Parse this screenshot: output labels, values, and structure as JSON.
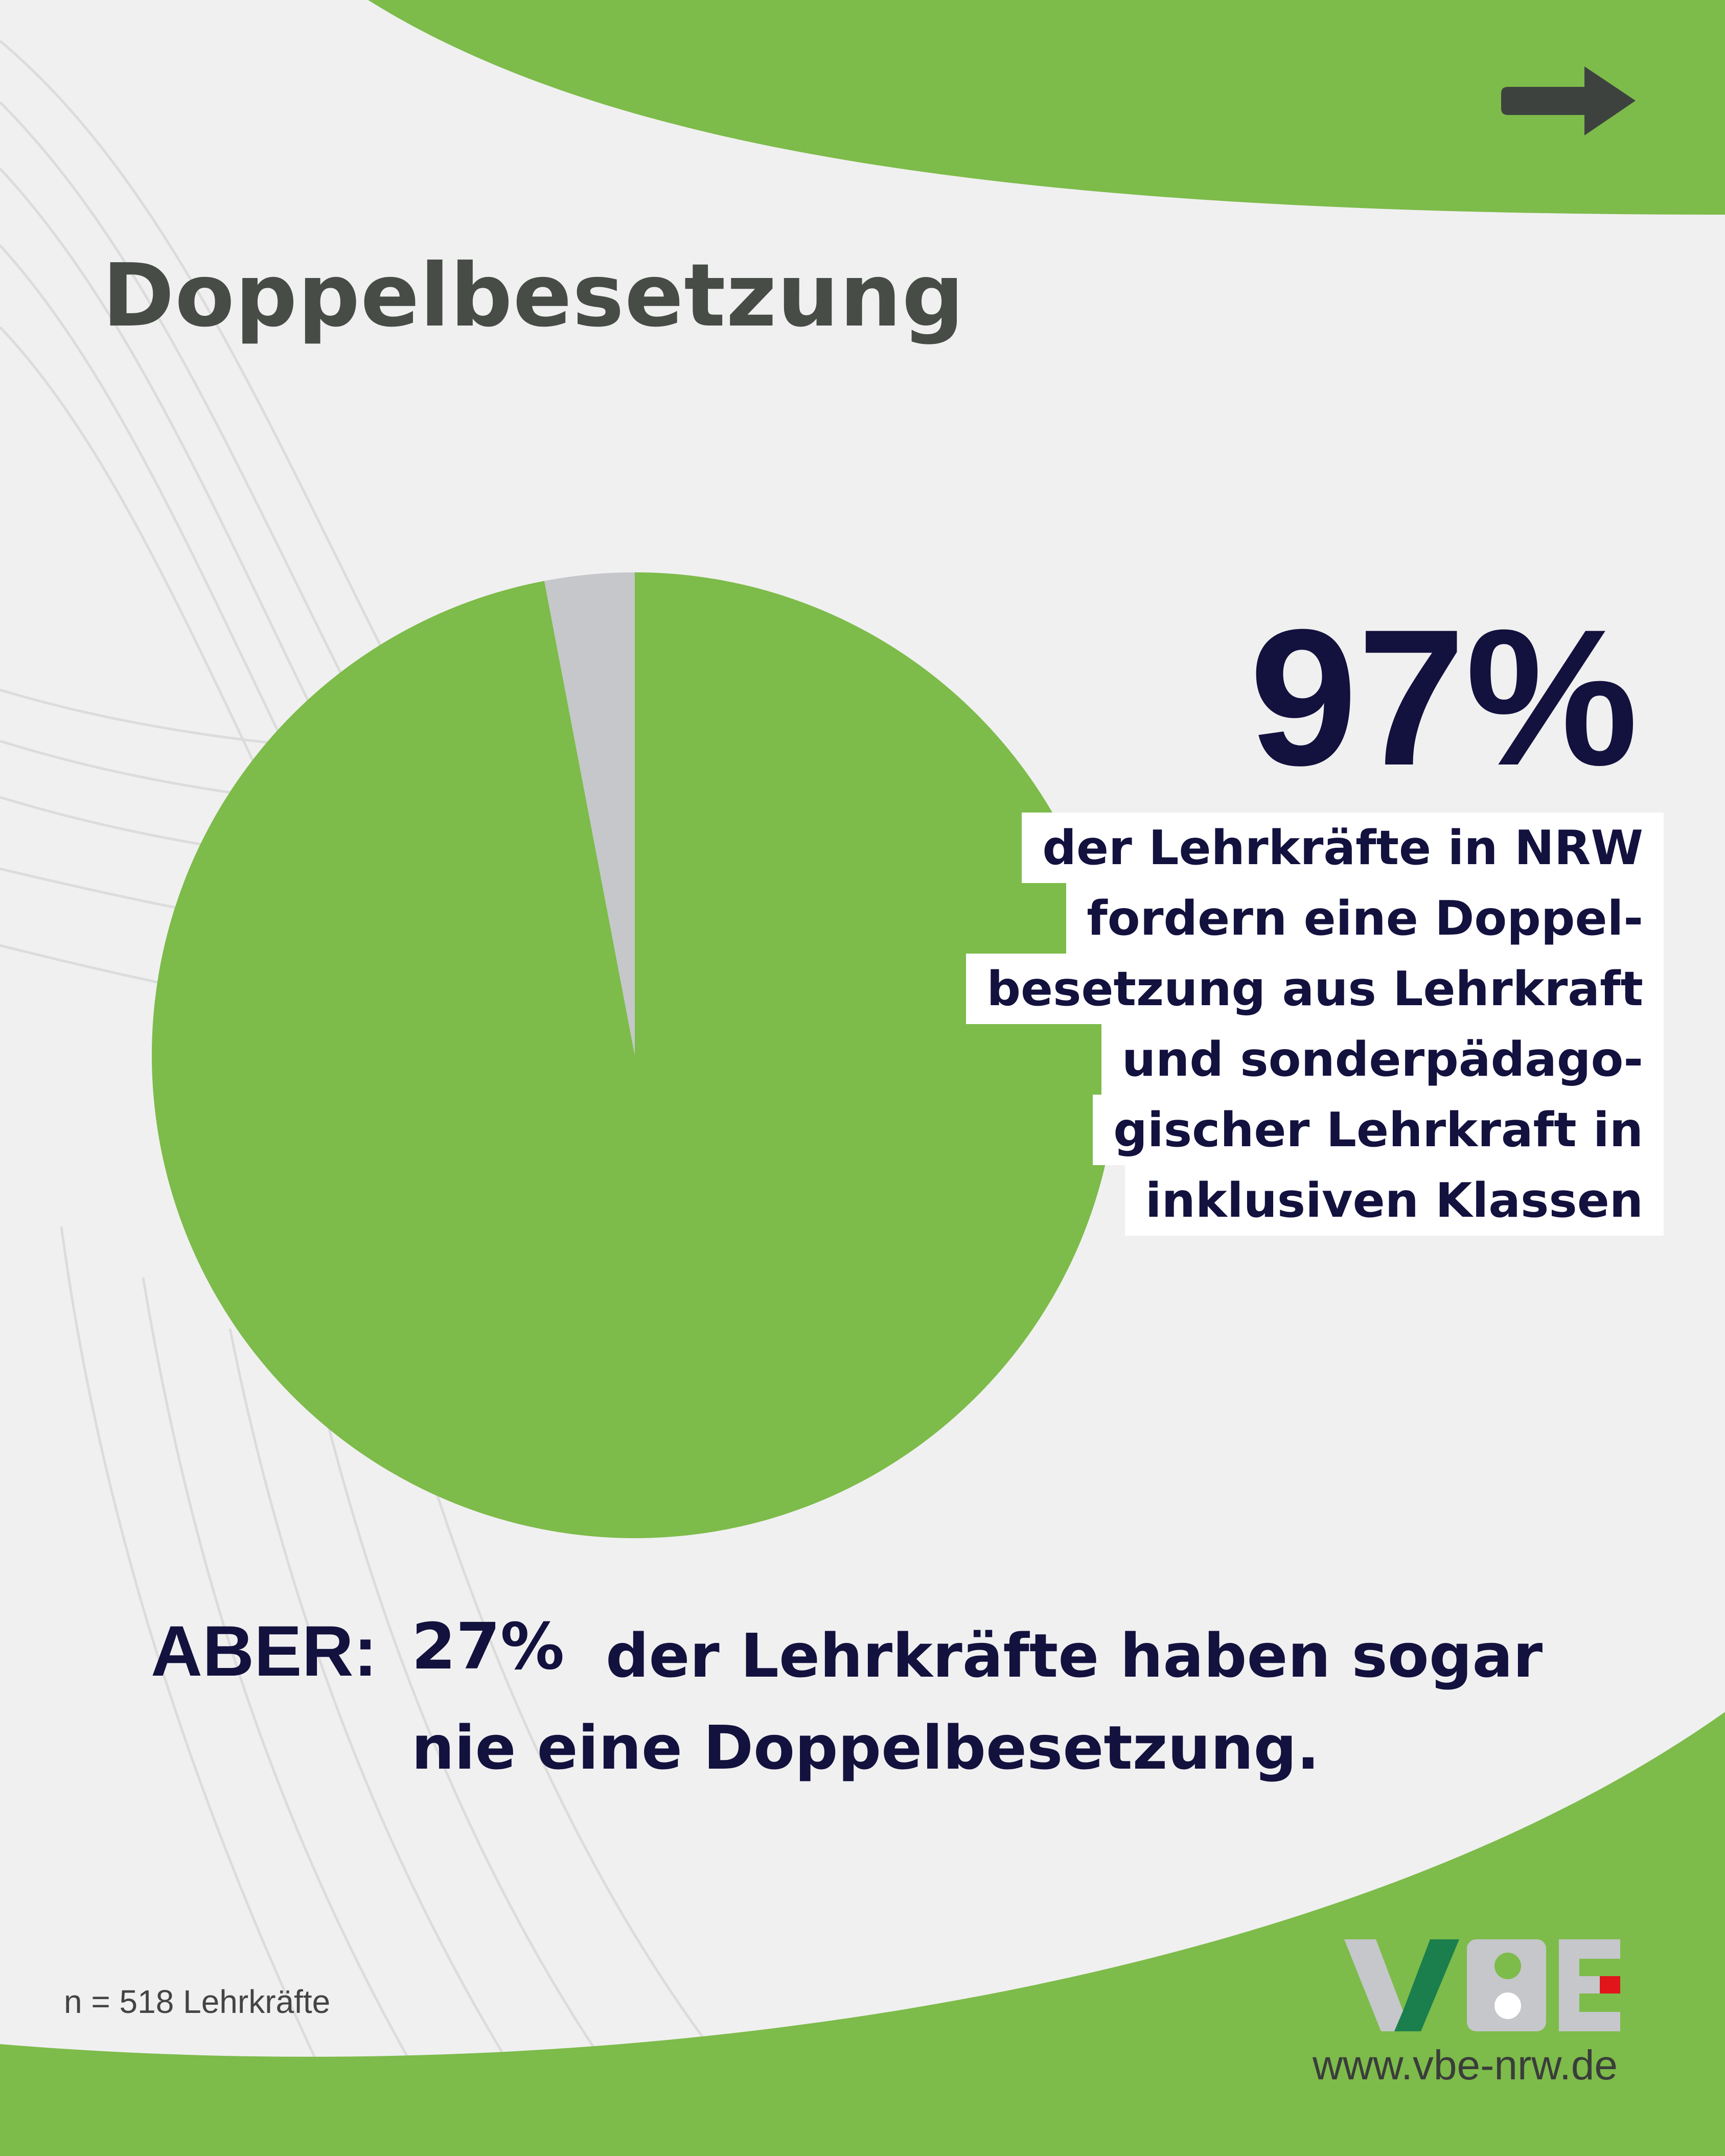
{
  "title": "Doppelbesetzung",
  "nav": {
    "icon": "arrow-right-icon"
  },
  "chart_data": {
    "type": "pie",
    "slices": [
      {
        "label": "fordern eine Doppelbesetzung",
        "value": 97,
        "color": "#7dbb4a"
      },
      {
        "label": "",
        "value": 3,
        "color": "#c5c7ca"
      }
    ]
  },
  "highlight": {
    "value": "97%",
    "lines": [
      "der Lehrkräfte in NRW",
      "fordern eine Doppel-",
      "besetzung aus Lehrkraft",
      "und sonderpädago-",
      "gischer Lehrkraft in",
      "inklusiven Klassen"
    ]
  },
  "aber": {
    "label": "ABER:",
    "value": "27%",
    "text": "der Lehrkräfte haben sogar nie eine Doppelbesetzung."
  },
  "footnote": "n = 518 Lehrkräfte",
  "logo": {
    "text": "VBE",
    "icon": "vbe-logo-icon"
  },
  "website": "www.vbe-nrw.de",
  "colors": {
    "green": "#7dbb4a",
    "navy": "#13113e",
    "grey_slice": "#c5c7ca",
    "background": "#f0f0f0"
  }
}
